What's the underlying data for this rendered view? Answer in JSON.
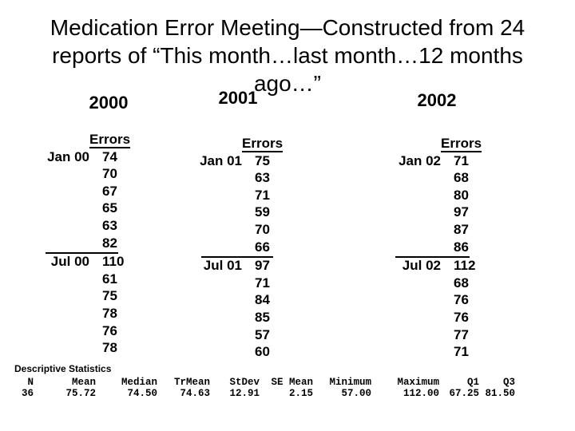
{
  "title": {
    "lines": [
      "Medication Error Meeting—Constructed from 24",
      "reports of “This month…last month…12 months",
      "ago…”"
    ]
  },
  "columns": [
    {
      "year": "2000",
      "header": "Errors",
      "rows": [
        {
          "label": "Jan 00",
          "value": "74"
        },
        {
          "label": "",
          "value": "70"
        },
        {
          "label": "",
          "value": "67"
        },
        {
          "label": "",
          "value": "65"
        },
        {
          "label": "",
          "value": "63"
        },
        {
          "label": "",
          "value": "82"
        },
        {
          "label": "Jul 00",
          "value": "110"
        },
        {
          "label": "",
          "value": "61"
        },
        {
          "label": "",
          "value": "75"
        },
        {
          "label": "",
          "value": "78"
        },
        {
          "label": "",
          "value": "76"
        },
        {
          "label": "",
          "value": "78"
        }
      ]
    },
    {
      "year": "2001",
      "header": "Errors",
      "rows": [
        {
          "label": "Jan 01",
          "value": "75"
        },
        {
          "label": "",
          "value": "63"
        },
        {
          "label": "",
          "value": "71"
        },
        {
          "label": "",
          "value": "59"
        },
        {
          "label": "",
          "value": "70"
        },
        {
          "label": "",
          "value": "66"
        },
        {
          "label": "Jul 01",
          "value": "97"
        },
        {
          "label": "",
          "value": "71"
        },
        {
          "label": "",
          "value": "84"
        },
        {
          "label": "",
          "value": "85"
        },
        {
          "label": "",
          "value": "57"
        },
        {
          "label": "",
          "value": "60"
        }
      ]
    },
    {
      "year": "2002",
      "header": "Errors",
      "rows": [
        {
          "label": "Jan 02",
          "value": "71"
        },
        {
          "label": "",
          "value": "68"
        },
        {
          "label": "",
          "value": "80"
        },
        {
          "label": "",
          "value": "97"
        },
        {
          "label": "",
          "value": "87"
        },
        {
          "label": "",
          "value": "86"
        },
        {
          "label": "Jul 02",
          "value": "112"
        },
        {
          "label": "",
          "value": "68"
        },
        {
          "label": "",
          "value": "76"
        },
        {
          "label": "",
          "value": "76"
        },
        {
          "label": "",
          "value": "77"
        },
        {
          "label": "",
          "value": "71"
        }
      ]
    }
  ],
  "stats": {
    "title": "Descriptive Statistics",
    "columns": [
      {
        "name": "N",
        "value": "36"
      },
      {
        "name": "Mean",
        "value": "75.72"
      },
      {
        "name": "Median",
        "value": "74.50"
      },
      {
        "name": "TrMean",
        "value": "74.63"
      },
      {
        "name": "StDev",
        "value": "12.91"
      },
      {
        "name": "SE Mean",
        "value": "2.15"
      },
      {
        "name": "Minimum",
        "value": "57.00"
      },
      {
        "name": "Maximum",
        "value": "112.00"
      },
      {
        "name": "Q1",
        "value": "67.25"
      },
      {
        "name": "Q3",
        "value": "81.50"
      }
    ]
  }
}
